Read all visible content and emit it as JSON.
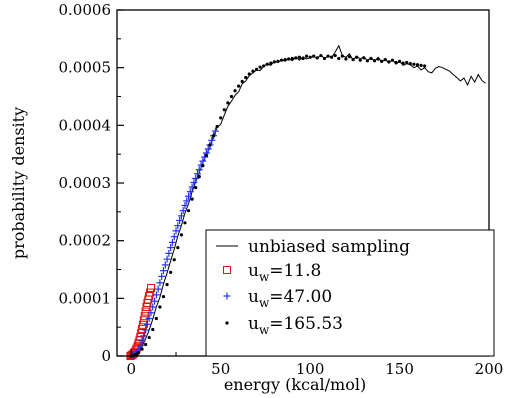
{
  "chart_data": {
    "type": "line",
    "title": "",
    "xlabel": "energy (kcal/mol)",
    "ylabel": "probability density",
    "xlim": [
      -8,
      200
    ],
    "ylim": [
      0,
      0.0006
    ],
    "xticks": [
      {
        "value": 0,
        "label": "0"
      },
      {
        "value": 50,
        "label": "50"
      },
      {
        "value": 100,
        "label": "100"
      },
      {
        "value": 150,
        "label": "150"
      },
      {
        "value": 200,
        "label": "200"
      }
    ],
    "yticks": [
      {
        "value": 0,
        "label": "0"
      },
      {
        "value": 0.0001,
        "label": "0.0001"
      },
      {
        "value": 0.0002,
        "label": "0.0002"
      },
      {
        "value": 0.0003,
        "label": "0.0003"
      },
      {
        "value": 0.0004,
        "label": "0.0004"
      },
      {
        "value": 0.0005,
        "label": "0.0005"
      },
      {
        "value": 0.0006,
        "label": "0.0006"
      }
    ],
    "grid": false,
    "legend_position": "bottom-right",
    "series": [
      {
        "name": "unbiased sampling",
        "style": "line",
        "color": "#000000",
        "x": [
          0,
          2,
          4,
          6,
          8,
          10,
          12,
          14,
          16,
          18,
          20,
          22,
          24,
          26,
          28,
          30,
          32,
          34,
          36,
          38,
          40,
          42,
          44,
          46,
          48,
          50,
          52,
          54,
          56,
          58,
          60,
          62,
          64,
          66,
          68,
          70,
          72,
          74,
          76,
          78,
          80,
          82,
          84,
          86,
          88,
          90,
          92,
          94,
          96,
          98,
          100,
          102,
          104,
          106,
          108,
          110,
          112,
          114,
          116,
          118,
          120,
          122,
          124,
          126,
          128,
          130,
          132,
          134,
          136,
          138,
          140,
          142,
          144,
          146,
          148,
          150,
          152,
          154,
          156,
          158,
          160,
          162,
          164,
          166,
          168,
          170,
          172,
          174,
          176,
          178,
          180,
          182,
          184,
          186,
          188,
          190,
          192,
          194,
          196,
          198
        ],
        "y": [
          0.0,
          1e-06,
          6e-06,
          1.6e-05,
          3e-05,
          4.5e-05,
          6.4e-05,
          8.5e-05,
          0.000102,
          0.000125,
          0.000144,
          0.000165,
          0.000185,
          0.000208,
          0.000226,
          0.000248,
          0.000264,
          0.000285,
          0.000302,
          0.000318,
          0.000335,
          0.00035,
          0.000362,
          0.000382,
          0.000396,
          0.000402,
          0.000418,
          0.000433,
          0.000442,
          0.000452,
          0.000458,
          0.000472,
          0.000477,
          0.000486,
          0.000491,
          0.000496,
          0.000495,
          0.000502,
          0.000507,
          0.000504,
          0.000511,
          0.000509,
          0.000514,
          0.000511,
          0.000516,
          0.000512,
          0.000518,
          0.000513,
          0.000519,
          0.000515,
          0.000518,
          0.000519,
          0.000516,
          0.000522,
          0.000516,
          0.00052,
          0.000518,
          0.000527,
          0.000538,
          0.000521,
          0.000518,
          0.000524,
          0.000513,
          0.00052,
          0.000515,
          0.000519,
          0.000512,
          0.000518,
          0.000511,
          0.000518,
          0.00051,
          0.000515,
          0.000508,
          0.000514,
          0.000506,
          0.000511,
          0.000504,
          0.000507,
          0.000505,
          0.0005,
          0.000503,
          0.000496,
          0.0005,
          0.000493,
          0.000491,
          0.000499,
          0.000502,
          0.0005,
          0.000497,
          0.000494,
          0.000488,
          0.000483,
          0.000477,
          0.000482,
          0.00047,
          0.000485,
          0.000475,
          0.000488,
          0.000478,
          0.000473
        ]
      },
      {
        "name": "u_w=11.8",
        "style": "marker",
        "marker": "square",
        "color": "#dd1111",
        "x": [
          -0.5,
          0,
          0.5,
          1,
          1.5,
          2,
          2.5,
          3,
          3.5,
          4,
          4.5,
          5,
          5.5,
          6,
          6.5,
          7,
          7.5,
          8,
          8.5,
          9,
          9.5,
          10,
          10.5,
          11
        ],
        "y": [
          0.0,
          1e-06,
          2e-06,
          3e-06,
          5e-06,
          7e-06,
          1e-05,
          1.3e-05,
          1.7e-05,
          2.2e-05,
          2.7e-05,
          3.3e-05,
          4e-05,
          4.7e-05,
          5.4e-05,
          6.2e-05,
          6.9e-05,
          7.7e-05,
          8.5e-05,
          9.2e-05,
          9.8e-05,
          0.000104,
          0.00011,
          0.000118
        ]
      },
      {
        "name": "u_w=47.00",
        "style": "marker",
        "marker": "plus",
        "color": "#2233ee",
        "x": [
          1,
          2,
          3,
          4,
          5,
          6,
          7,
          8,
          9,
          10,
          11,
          12,
          13,
          14,
          15,
          16,
          17,
          18,
          19,
          20,
          21,
          22,
          23,
          24,
          25,
          26,
          27,
          28,
          29,
          30,
          31,
          32,
          33,
          34,
          35,
          36,
          37,
          38,
          39,
          40,
          41,
          42,
          43,
          44,
          45,
          46,
          47
        ],
        "y": [
          1e-06,
          3e-06,
          6e-06,
          1.1e-05,
          1.8e-05,
          2.6e-05,
          3.5e-05,
          4.5e-05,
          5.5e-05,
          6.5e-05,
          7.5e-05,
          8.5e-05,
          9.5e-05,
          0.000106,
          0.000116,
          0.000127,
          0.000138,
          0.000148,
          0.000158,
          0.000168,
          0.000178,
          0.000188,
          0.000197,
          0.000207,
          0.000217,
          0.000226,
          0.000235,
          0.000243,
          0.000252,
          0.000261,
          0.000269,
          0.000277,
          0.000285,
          0.000293,
          0.000301,
          0.000308,
          0.000316,
          0.000323,
          0.000331,
          0.000338,
          0.000345,
          0.000352,
          0.000359,
          0.000366,
          0.000374,
          0.000382,
          0.00039
        ]
      },
      {
        "name": "u_w=165.53",
        "style": "marker",
        "marker": "dot",
        "color": "#000000",
        "x": [
          0,
          1,
          2,
          3,
          4,
          6,
          8,
          10,
          12,
          14,
          16,
          18,
          20,
          22,
          24,
          26,
          28,
          30,
          32,
          34,
          36,
          38,
          40,
          42,
          44,
          46,
          48,
          50,
          52,
          54,
          56,
          58,
          60,
          62,
          64,
          66,
          68,
          70,
          72,
          74,
          76,
          78,
          80,
          82,
          84,
          86,
          88,
          90,
          92,
          94,
          96,
          98,
          100,
          102,
          104,
          106,
          108,
          110,
          112,
          114,
          116,
          118,
          120,
          122,
          124,
          126,
          128,
          130,
          132,
          134,
          136,
          138,
          140,
          142,
          144,
          146,
          148,
          150,
          152,
          154,
          156,
          158,
          160,
          162,
          164
        ],
        "y": [
          0.0,
          1e-06,
          2e-06,
          3e-06,
          6e-06,
          1.2e-05,
          2e-05,
          3.2e-05,
          4.6e-05,
          6.5e-05,
          8.5e-05,
          0.000103,
          0.000124,
          0.000145,
          0.000167,
          0.000188,
          0.00021,
          0.000231,
          0.000252,
          0.000272,
          0.000292,
          0.000311,
          0.00033,
          0.000348,
          0.000366,
          0.000382,
          0.000398,
          0.000413,
          0.000427,
          0.000439,
          0.00045,
          0.00046,
          0.000468,
          0.000476,
          0.000483,
          0.000489,
          0.000494,
          0.000497,
          0.000501,
          0.000503,
          0.000506,
          0.000508,
          0.00051,
          0.000511,
          0.000513,
          0.000514,
          0.000515,
          0.000516,
          0.000517,
          0.000518,
          0.000516,
          0.00052,
          0.000518,
          0.00052,
          0.000517,
          0.000521,
          0.000516,
          0.00052,
          0.000518,
          0.000521,
          0.000516,
          0.00052,
          0.000515,
          0.000519,
          0.000514,
          0.000518,
          0.000513,
          0.000517,
          0.000512,
          0.000516,
          0.000512,
          0.000515,
          0.000511,
          0.000514,
          0.00051,
          0.000513,
          0.000509,
          0.000511,
          0.000508,
          0.000509,
          0.000507,
          0.000506,
          0.000505,
          0.000504,
          0.000503
        ]
      }
    ],
    "legend": [
      {
        "marker": "line",
        "color": "#000000",
        "text": "unbiased sampling"
      },
      {
        "marker": "square",
        "color": "#dd1111",
        "base": "u",
        "sub": "w",
        "rest": "=11.8"
      },
      {
        "marker": "plus",
        "color": "#2233ee",
        "base": "u",
        "sub": "w",
        "rest": "=47.00"
      },
      {
        "marker": "dot",
        "color": "#000000",
        "base": "u",
        "sub": "w",
        "rest": "=165.53"
      }
    ]
  }
}
